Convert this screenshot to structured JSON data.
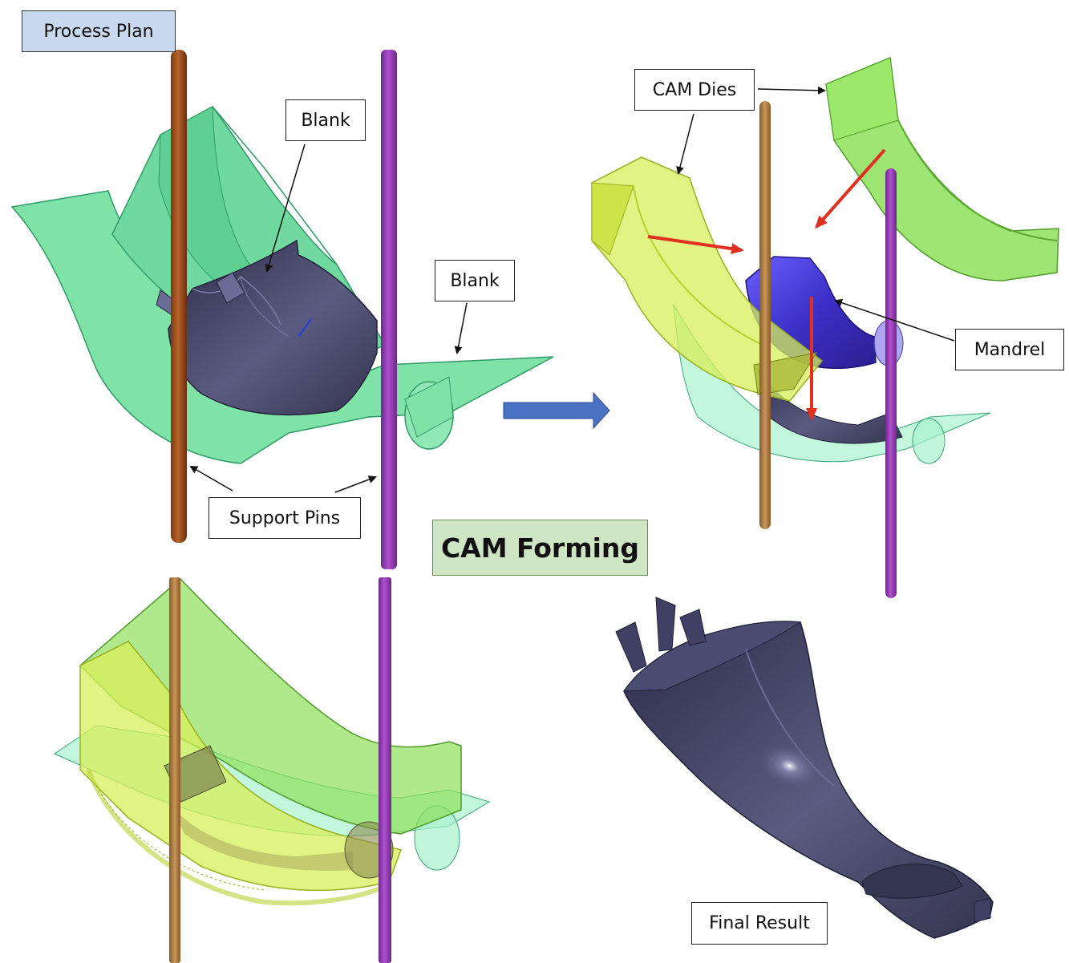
{
  "labels": {
    "process_plan": "Process Plan",
    "blank_top": "Blank",
    "blank_right": "Blank",
    "support_pins": "Support Pins",
    "cam_dies": "CAM Dies",
    "mandrel": "Mandrel",
    "cam_forming": "CAM Forming",
    "final_result": "Final Result"
  },
  "colors": {
    "die_green": "#7fe3a8",
    "die_green_edge": "#2f9a66",
    "cam_die_yellow": "#d7ef5a",
    "cam_die_green": "#8ee05a",
    "blank_dark": "#3f4063",
    "mandrel_blue": "#4a3fd6",
    "pin_brown": "#a0501e",
    "pin_tan": "#b8834a",
    "pin_purple": "#9a3fb8",
    "arrow_red": "#e03020",
    "arrow_blue": "#4a72c4",
    "process_plan_bg": "#c8d9ef",
    "cam_forming_bg": "#cfe6c4"
  }
}
